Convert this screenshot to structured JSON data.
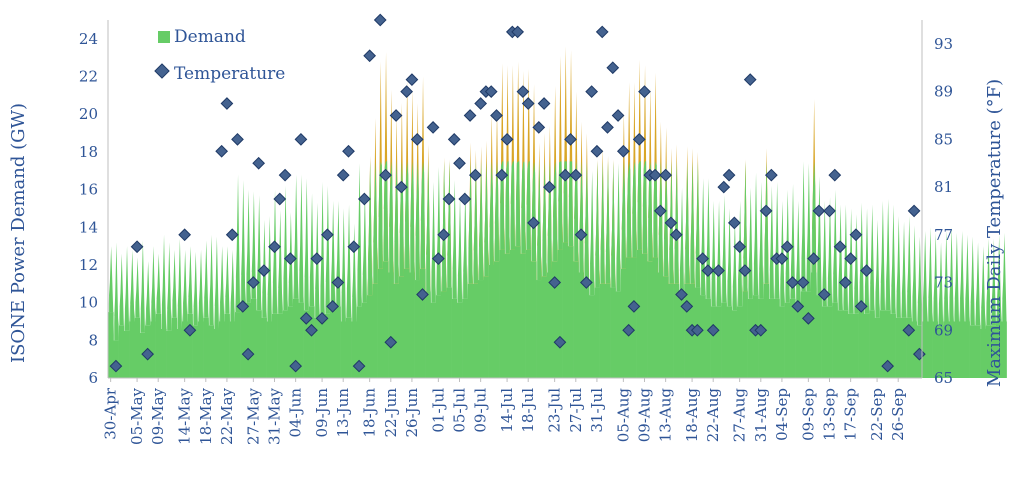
{
  "colors": {
    "demand": "#66cc66",
    "demand_peak": "#d9a627",
    "marker_fill": "#44628f",
    "marker_stroke": "#1f3a66",
    "axis_text": "#2f5597"
  },
  "chart_data": {
    "type": "bar",
    "x_start": "2023-04-30",
    "x_end": "2023-09-30",
    "ylabel_left": "ISONE Power Demand (GW)",
    "ylabel_right": "Maximum Daily Temperature (°F)",
    "ylim_left": [
      6,
      25
    ],
    "ylim_right": [
      65,
      95
    ],
    "yticks_left": [
      6,
      8,
      10,
      12,
      14,
      16,
      18,
      20,
      22,
      24
    ],
    "yticks_right": [
      65,
      69,
      73,
      77,
      81,
      85,
      89,
      93
    ],
    "demand_threshold_gw": 17.5,
    "x_tick_labels": [
      "30-Apr",
      "05-May",
      "09-May",
      "14-May",
      "18-May",
      "22-May",
      "27-May",
      "31-May",
      "04-Jun",
      "09-Jun",
      "13-Jun",
      "18-Jun",
      "22-Jun",
      "26-Jun",
      "01-Jul",
      "05-Jul",
      "09-Jul",
      "14-Jul",
      "18-Jul",
      "23-Jul",
      "27-Jul",
      "31-Jul",
      "05-Aug",
      "09-Aug",
      "13-Aug",
      "18-Aug",
      "22-Aug",
      "27-Aug",
      "31-Aug",
      "04-Sep",
      "09-Sep",
      "13-Sep",
      "17-Sep",
      "22-Sep",
      "26-Sep"
    ],
    "legend": [
      {
        "name": "Demand",
        "icon": "square-marker"
      },
      {
        "name": "Temperature",
        "icon": "diamond-marker"
      }
    ],
    "legend_position": "top-left",
    "series": [
      {
        "name": "Demand",
        "unit": "GW",
        "daily_peak": [
          13.0,
          13.2,
          12.6,
          13.0,
          12.8,
          12.4,
          13.3,
          12.2,
          13.0,
          12.6,
          13.6,
          13.2,
          12.8,
          13.4,
          12.8,
          13.0,
          12.7,
          12.8,
          13.3,
          13.6,
          13.5,
          13.0,
          13.0,
          12.8,
          16.8,
          16.5,
          16.0,
          15.9,
          15.7,
          14.4,
          14.6,
          16.0,
          14.9,
          16.2,
          14.8,
          16.8,
          16.8,
          16.6,
          15.8,
          15.3,
          16.4,
          16.2,
          15.4,
          15.4,
          15.0,
          15.2,
          14.2,
          17.4,
          15.9,
          17.8,
          19.8,
          22.8,
          23.3,
          21.3,
          19.9,
          20.6,
          21.8,
          21.3,
          20.6,
          22.0,
          18.4,
          16.4,
          17.2,
          17.7,
          17.6,
          16.5,
          15.6,
          16.0,
          18.5,
          18.1,
          18.3,
          18.6,
          20.0,
          20.2,
          22.7,
          22.6,
          22.6,
          22.8,
          22.3,
          22.4,
          21.6,
          18.5,
          19.0,
          19.4,
          21.5,
          23.1,
          23.6,
          23.4,
          21.2,
          19.6,
          19.0,
          17.0,
          17.6,
          18.2,
          17.8,
          17.6,
          17.4,
          20.1,
          21.7,
          21.7,
          22.9,
          22.6,
          21.4,
          22.2,
          19.6,
          19.3,
          18.2,
          18.4,
          16.1,
          18.3,
          18.2,
          18.0,
          16.6,
          16.6,
          15.4,
          15.4,
          15.7,
          15.0,
          14.4,
          15.4,
          17.6,
          16.1,
          16.9,
          16.4,
          18.2,
          16.2,
          16.4,
          15.4,
          16.0,
          16.3,
          15.4,
          17.5,
          17.4,
          20.8,
          16.7,
          15.4,
          15.6,
          16.0,
          15.2,
          15.2,
          15.0,
          14.7,
          15.3,
          15.0,
          15.2,
          14.4,
          15.4,
          15.5,
          15.2,
          14.6,
          14.3,
          14.6,
          14.1,
          13.5,
          13.8,
          14.0,
          13.7,
          13.2,
          13.8,
          14.0,
          13.7,
          13.8,
          13.6,
          13.5,
          13.2,
          13.0,
          13.4,
          13.4,
          13.6,
          13.7
        ],
        "daily_min": [
          9.5,
          8.0,
          8.8,
          8.5,
          9.0,
          9.2,
          8.4,
          8.8,
          9.0,
          9.4,
          8.6,
          8.5,
          9.2,
          8.6,
          9.0,
          9.4,
          8.8,
          9.0,
          9.2,
          8.8,
          8.6,
          9.0,
          9.4,
          9.0,
          9.5,
          9.8,
          10.0,
          10.2,
          9.6,
          9.2,
          9.0,
          9.4,
          9.4,
          9.6,
          9.8,
          10.2,
          10.0,
          9.6,
          9.8,
          9.2,
          9.0,
          9.4,
          9.6,
          9.8,
          9.0,
          9.2,
          9.0,
          9.8,
          10.0,
          10.4,
          11.0,
          11.8,
          12.2,
          11.6,
          11.0,
          11.4,
          11.8,
          11.6,
          11.2,
          11.8,
          10.6,
          10.0,
          10.4,
          10.6,
          10.8,
          10.2,
          10.0,
          10.2,
          11.0,
          11.0,
          11.2,
          11.4,
          12.0,
          12.2,
          12.8,
          12.6,
          12.8,
          13.0,
          12.6,
          12.8,
          12.2,
          11.2,
          11.4,
          11.6,
          12.2,
          12.8,
          13.2,
          13.0,
          12.2,
          11.6,
          11.2,
          10.4,
          10.8,
          11.0,
          11.0,
          10.8,
          10.6,
          11.8,
          12.4,
          12.4,
          12.8,
          12.6,
          12.2,
          12.4,
          11.6,
          11.4,
          11.0,
          11.0,
          10.2,
          11.0,
          11.0,
          10.8,
          10.4,
          10.2,
          9.8,
          9.8,
          10.0,
          9.8,
          9.6,
          9.8,
          10.6,
          10.2,
          10.4,
          10.2,
          11.0,
          10.2,
          10.2,
          9.8,
          10.0,
          10.2,
          9.8,
          10.6,
          10.6,
          11.6,
          10.4,
          9.8,
          9.8,
          10.0,
          9.6,
          9.6,
          9.4,
          9.4,
          9.6,
          9.4,
          9.6,
          9.2,
          9.6,
          9.6,
          9.4,
          9.2,
          9.2,
          9.2,
          9.0,
          8.8,
          9.0,
          9.0,
          9.0,
          8.8,
          9.0,
          9.0,
          9.0,
          9.0,
          9.0,
          8.8,
          8.8,
          8.6,
          8.8,
          8.8,
          9.0,
          9.0
        ]
      },
      {
        "name": "Temperature",
        "unit": "°F",
        "points": [
          [
            "2023-05-01",
            66
          ],
          [
            "2023-05-05",
            76
          ],
          [
            "2023-05-07",
            67
          ],
          [
            "2023-05-14",
            77
          ],
          [
            "2023-05-15",
            69
          ],
          [
            "2023-05-21",
            84
          ],
          [
            "2023-05-22",
            88
          ],
          [
            "2023-05-23",
            77
          ],
          [
            "2023-05-24",
            85
          ],
          [
            "2023-05-25",
            71
          ],
          [
            "2023-05-26",
            67
          ],
          [
            "2023-05-27",
            73
          ],
          [
            "2023-05-28",
            83
          ],
          [
            "2023-05-29",
            74
          ],
          [
            "2023-05-31",
            76
          ],
          [
            "2023-06-01",
            80
          ],
          [
            "2023-06-02",
            82
          ],
          [
            "2023-06-03",
            75
          ],
          [
            "2023-06-04",
            66
          ],
          [
            "2023-06-05",
            85
          ],
          [
            "2023-06-06",
            70
          ],
          [
            "2023-06-07",
            69
          ],
          [
            "2023-06-08",
            75
          ],
          [
            "2023-06-09",
            70
          ],
          [
            "2023-06-10",
            77
          ],
          [
            "2023-06-11",
            71
          ],
          [
            "2023-06-12",
            73
          ],
          [
            "2023-06-13",
            82
          ],
          [
            "2023-06-14",
            84
          ],
          [
            "2023-06-15",
            76
          ],
          [
            "2023-06-16",
            66
          ],
          [
            "2023-06-17",
            80
          ],
          [
            "2023-06-18",
            92
          ],
          [
            "2023-06-20",
            95
          ],
          [
            "2023-06-21",
            82
          ],
          [
            "2023-06-22",
            68
          ],
          [
            "2023-06-23",
            87
          ],
          [
            "2023-06-24",
            81
          ],
          [
            "2023-06-25",
            89
          ],
          [
            "2023-06-26",
            90
          ],
          [
            "2023-06-27",
            85
          ],
          [
            "2023-06-28",
            72
          ],
          [
            "2023-06-30",
            86
          ],
          [
            "2023-07-01",
            75
          ],
          [
            "2023-07-02",
            77
          ],
          [
            "2023-07-03",
            80
          ],
          [
            "2023-07-04",
            85
          ],
          [
            "2023-07-05",
            83
          ],
          [
            "2023-07-06",
            80
          ],
          [
            "2023-07-07",
            87
          ],
          [
            "2023-07-08",
            82
          ],
          [
            "2023-07-09",
            88
          ],
          [
            "2023-07-10",
            89
          ],
          [
            "2023-07-11",
            89
          ],
          [
            "2023-07-12",
            87
          ],
          [
            "2023-07-13",
            82
          ],
          [
            "2023-07-14",
            85
          ],
          [
            "2023-07-15",
            94
          ],
          [
            "2023-07-16",
            94
          ],
          [
            "2023-07-17",
            89
          ],
          [
            "2023-07-18",
            88
          ],
          [
            "2023-07-19",
            78
          ],
          [
            "2023-07-20",
            86
          ],
          [
            "2023-07-21",
            88
          ],
          [
            "2023-07-22",
            81
          ],
          [
            "2023-07-23",
            73
          ],
          [
            "2023-07-24",
            68
          ],
          [
            "2023-07-25",
            82
          ],
          [
            "2023-07-26",
            85
          ],
          [
            "2023-07-27",
            82
          ],
          [
            "2023-07-28",
            77
          ],
          [
            "2023-07-29",
            73
          ],
          [
            "2023-07-30",
            89
          ],
          [
            "2023-07-31",
            84
          ],
          [
            "2023-08-01",
            94
          ],
          [
            "2023-08-02",
            86
          ],
          [
            "2023-08-03",
            91
          ],
          [
            "2023-08-04",
            87
          ],
          [
            "2023-08-05",
            84
          ],
          [
            "2023-08-06",
            69
          ],
          [
            "2023-08-07",
            71
          ],
          [
            "2023-08-08",
            85
          ],
          [
            "2023-08-09",
            89
          ],
          [
            "2023-08-10",
            82
          ],
          [
            "2023-08-11",
            82
          ],
          [
            "2023-08-12",
            79
          ],
          [
            "2023-08-13",
            82
          ],
          [
            "2023-08-14",
            78
          ],
          [
            "2023-08-15",
            77
          ],
          [
            "2023-08-16",
            72
          ],
          [
            "2023-08-17",
            71
          ],
          [
            "2023-08-18",
            69
          ],
          [
            "2023-08-19",
            69
          ],
          [
            "2023-08-20",
            75
          ],
          [
            "2023-08-21",
            74
          ],
          [
            "2023-08-22",
            69
          ],
          [
            "2023-08-23",
            74
          ],
          [
            "2023-08-24",
            81
          ],
          [
            "2023-08-25",
            82
          ],
          [
            "2023-08-26",
            78
          ],
          [
            "2023-08-27",
            76
          ],
          [
            "2023-08-28",
            74
          ],
          [
            "2023-08-29",
            90
          ],
          [
            "2023-08-30",
            69
          ],
          [
            "2023-08-31",
            69
          ],
          [
            "2023-09-01",
            79
          ],
          [
            "2023-09-02",
            82
          ],
          [
            "2023-09-03",
            75
          ],
          [
            "2023-09-04",
            75
          ],
          [
            "2023-09-05",
            76
          ],
          [
            "2023-09-06",
            73
          ],
          [
            "2023-09-07",
            71
          ],
          [
            "2023-09-08",
            73
          ],
          [
            "2023-09-09",
            70
          ],
          [
            "2023-09-10",
            75
          ],
          [
            "2023-09-11",
            79
          ],
          [
            "2023-09-12",
            72
          ],
          [
            "2023-09-13",
            79
          ],
          [
            "2023-09-14",
            82
          ],
          [
            "2023-09-15",
            76
          ],
          [
            "2023-09-16",
            73
          ],
          [
            "2023-09-17",
            75
          ],
          [
            "2023-09-18",
            77
          ],
          [
            "2023-09-19",
            71
          ],
          [
            "2023-09-20",
            74
          ],
          [
            "2023-09-24",
            66
          ],
          [
            "2023-09-28",
            69
          ],
          [
            "2023-09-29",
            79
          ],
          [
            "2023-09-30",
            67
          ]
        ]
      }
    ]
  }
}
